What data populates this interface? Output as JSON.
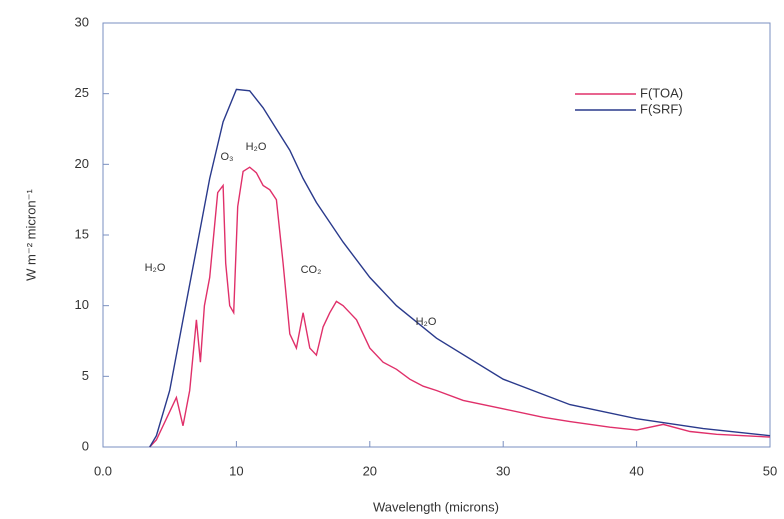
{
  "chart_data": {
    "type": "line",
    "x_label": "Wavelength (microns)",
    "y_label": "W m⁻² micron⁻¹",
    "xlim": [
      0,
      50
    ],
    "ylim": [
      0,
      30
    ],
    "xticks": [
      {
        "value": 0,
        "label": "0.0"
      },
      10,
      20,
      30,
      40,
      50
    ],
    "yticks": [
      0,
      5,
      10,
      15,
      20,
      25,
      30
    ],
    "legend": "upper right",
    "annotations": [
      "H₂O",
      "O₃",
      "H₂O",
      "CO₂",
      "H₂O"
    ],
    "series": [
      {
        "name": "F(TOA)",
        "color": "#e0306a",
        "x": [
          3.5,
          4,
          5,
          5.5,
          6,
          6.5,
          7,
          7.3,
          7.6,
          8,
          8.3,
          8.6,
          9,
          9.2,
          9.5,
          9.8,
          10.1,
          10.5,
          11,
          11.5,
          12,
          12.5,
          13,
          13.5,
          14,
          14.5,
          15,
          15.5,
          16,
          16.5,
          17,
          17.5,
          18,
          18.5,
          19,
          20,
          21,
          22,
          23,
          24,
          25,
          27,
          30,
          33,
          35,
          38,
          40,
          42,
          44,
          46,
          48,
          50
        ],
        "values": [
          0,
          0.5,
          2.5,
          3.5,
          1.5,
          4,
          9,
          6,
          10,
          12,
          15,
          18,
          18.5,
          13,
          10,
          9.5,
          17,
          19.5,
          19.8,
          19.4,
          18.5,
          18.2,
          17.5,
          13,
          8,
          7,
          9.5,
          7,
          6.5,
          8.5,
          9.5,
          10.3,
          10,
          9.5,
          9,
          7,
          6,
          5.5,
          4.8,
          4.3,
          4,
          3.3,
          2.7,
          2.1,
          1.8,
          1.4,
          1.2,
          1.6,
          1.1,
          0.9,
          0.8,
          0.7
        ]
      },
      {
        "name": "F(SRF)",
        "color": "#2a3a8c",
        "x": [
          3.5,
          4,
          5,
          6,
          7,
          8,
          9,
          10,
          11,
          12,
          13,
          14,
          15,
          16,
          18,
          20,
          22,
          25,
          30,
          35,
          40,
          45,
          50
        ],
        "values": [
          0,
          0.8,
          4,
          9,
          14,
          19,
          23,
          25.3,
          25.2,
          24,
          22.5,
          21,
          19,
          17.3,
          14.5,
          12,
          10,
          7.7,
          4.8,
          3,
          2,
          1.3,
          0.8
        ]
      }
    ]
  }
}
